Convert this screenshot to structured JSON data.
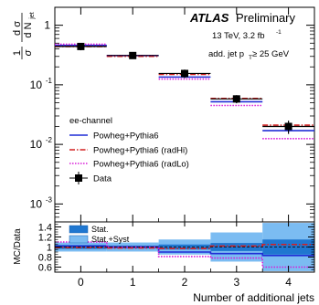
{
  "chart_data": {
    "type": "bar",
    "x_categories": [
      "0",
      "1",
      "2",
      "3",
      "4"
    ],
    "xlabel": "Number of additional jets",
    "top_panel": {
      "ylabel_parts": {
        "lead": "1",
        "num": "d σ",
        "sigma": "σ",
        "den": "d N",
        "sub": "jet"
      },
      "yscale": "log",
      "ylim": [
        0.0005,
        2
      ],
      "y_ticks": [
        {
          "v": 0.001,
          "m": "10",
          "e": "-3"
        },
        {
          "v": 0.01,
          "m": "10",
          "e": "-2"
        },
        {
          "v": 0.1,
          "m": "10",
          "e": "-1"
        },
        {
          "v": 1,
          "m": "1",
          "e": ""
        }
      ],
      "annotations": {
        "atlas": "ATLAS",
        "prelim": "Preliminary",
        "energy_pre": "13 TeV, 3.2 fb",
        "energy_sup": "-1",
        "cut_pre": "add. jet p",
        "cut_sub": "T",
        "cut_post": " ≥ 25 GeV",
        "channel": "ee-channel"
      },
      "legend": [
        {
          "label": "Powheg+Pythia6",
          "style": "solid",
          "color": "#1f2dd6"
        },
        {
          "label": "Powheg+Pythia6 (radHi)",
          "style": "dashdot",
          "color": "#d42020"
        },
        {
          "label": "Powheg+Pythia6 (radLo)",
          "style": "dotted",
          "color": "#d81bd8"
        },
        {
          "label": "Data",
          "style": "marker",
          "color": "#000000"
        }
      ],
      "data": {
        "values": [
          0.44,
          0.31,
          0.155,
          0.058,
          0.02
        ],
        "err": [
          0.06,
          0.035,
          0.025,
          0.009,
          0.005
        ]
      },
      "series": [
        {
          "key": "nominal",
          "color": "#1f2dd6",
          "dash": "",
          "values": [
            0.46,
            0.31,
            0.135,
            0.052,
            0.017
          ]
        },
        {
          "key": "radHi",
          "color": "#d42020",
          "dash": "6,2,1.5,2",
          "values": [
            0.44,
            0.3,
            0.15,
            0.059,
            0.021
          ]
        },
        {
          "key": "radLo",
          "color": "#d81bd8",
          "dash": "1.5,1.5",
          "values": [
            0.48,
            0.31,
            0.125,
            0.045,
            0.0125
          ]
        }
      ]
    },
    "ratio_panel": {
      "ylabel": "MC/Data",
      "ylim": [
        0.5,
        1.5
      ],
      "y_ticks": [
        "0.6",
        "0.8",
        "1",
        "1.2",
        "1.4"
      ],
      "legend": [
        {
          "label": "Stat.",
          "color": "#1f77d0"
        },
        {
          "label": "Stat.+Syst",
          "color": "#7bbcf2"
        }
      ],
      "band_stat": [
        [
          0.96,
          1.04
        ],
        [
          0.97,
          1.03
        ],
        [
          0.95,
          1.05
        ],
        [
          0.92,
          1.08
        ],
        [
          0.85,
          1.15
        ]
      ],
      "band_syst": [
        [
          0.91,
          1.09
        ],
        [
          0.91,
          1.09
        ],
        [
          0.85,
          1.15
        ],
        [
          0.71,
          1.29
        ],
        [
          0.52,
          1.48
        ]
      ],
      "series": [
        {
          "key": "nominal",
          "color": "#1f2dd6",
          "dash": "",
          "values": [
            1.02,
            1.0,
            0.9,
            0.87,
            0.83
          ]
        },
        {
          "key": "radHi",
          "color": "#d42020",
          "dash": "6,2,1.5,2",
          "values": [
            0.99,
            0.98,
            0.97,
            1.02,
            1.05
          ]
        },
        {
          "key": "radLo",
          "color": "#d81bd8",
          "dash": "1.5,1.5",
          "values": [
            1.1,
            1.0,
            0.81,
            0.78,
            0.6
          ]
        }
      ]
    }
  }
}
